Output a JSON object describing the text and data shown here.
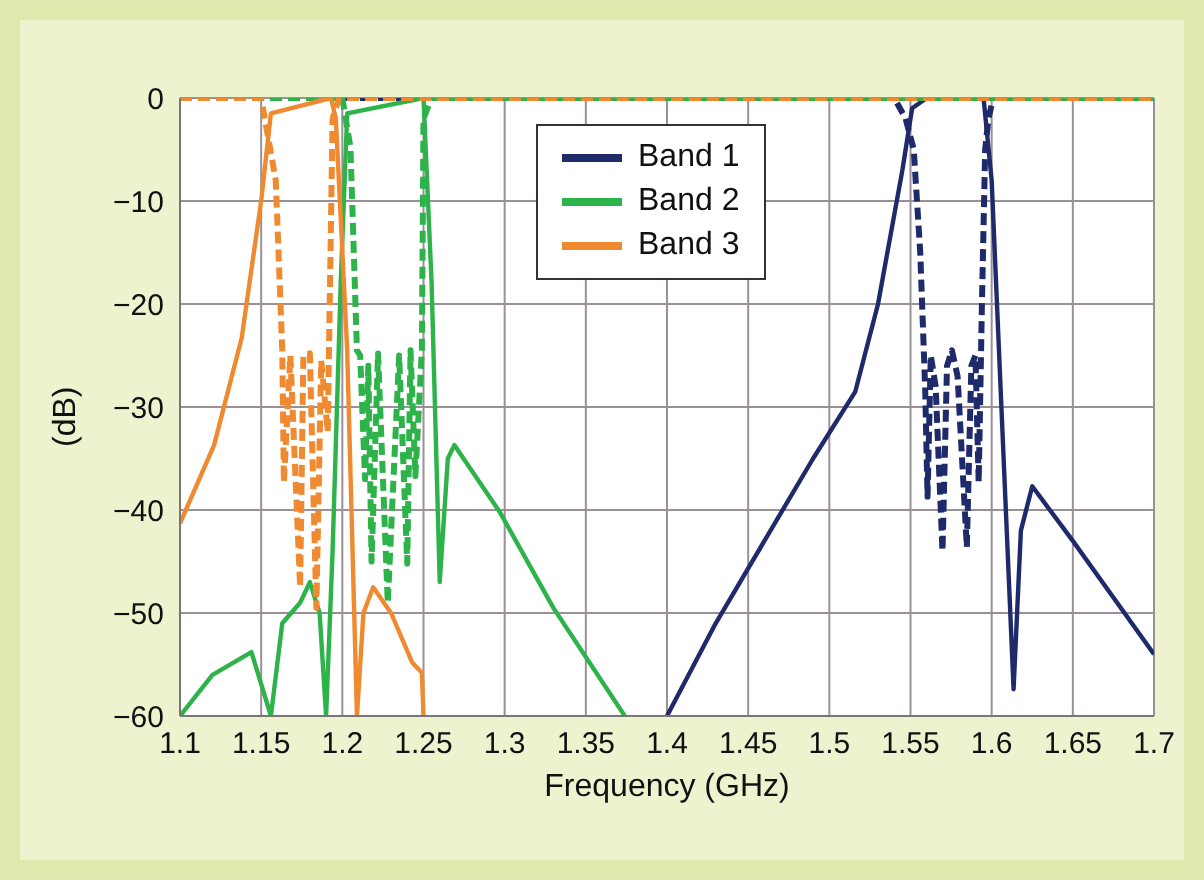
{
  "chart_data": {
    "type": "line",
    "xlabel": "Frequency (GHz)",
    "ylabel": "(dB)",
    "xlim": [
      1.1,
      1.7
    ],
    "xticks": [
      1.1,
      1.15,
      1.2,
      1.25,
      1.3,
      1.35,
      1.4,
      1.45,
      1.5,
      1.55,
      1.6,
      1.65,
      1.7
    ],
    "ylim": [
      -60,
      0
    ],
    "yticks": [
      -60,
      -50,
      -40,
      -30,
      -20,
      -10,
      0
    ],
    "grid": true,
    "legend": "top",
    "marker": "none",
    "series": [
      {
        "name": "Band 1",
        "color": "#1f2a6b",
        "line_style": "solid",
        "x": [
          1.4,
          1.43,
          1.46,
          1.49,
          1.516,
          1.53,
          1.545,
          1.551,
          1.56,
          1.595,
          1.6,
          1.606,
          1.6135,
          1.618,
          1.625,
          1.65,
          1.7
        ],
        "values": [
          -60,
          -51,
          -43,
          -35,
          -28.5,
          -20,
          -7,
          -1,
          0,
          0,
          -8,
          -30,
          -57.4,
          -42,
          -37.7,
          -43,
          -54
        ]
      },
      {
        "color": "#1f2a6b",
        "line_style": "dashed",
        "x": [
          1.1,
          1.54,
          1.547,
          1.552,
          1.556,
          1.559,
          1.5605,
          1.5625,
          1.5655,
          1.5697,
          1.5725,
          1.5755,
          1.579,
          1.5847,
          1.5875,
          1.59,
          1.592,
          1.594,
          1.596,
          1.598,
          1.601,
          1.7
        ],
        "values": [
          0,
          0,
          -2,
          -5,
          -15,
          -28,
          -38.7,
          -25,
          -28,
          -44,
          -26,
          -24.5,
          -27,
          -43.6,
          -26,
          -25,
          -37.3,
          -20,
          -5,
          -2,
          0,
          0
        ]
      },
      {
        "name": "Band 2",
        "color": "#2db34a",
        "line_style": "solid",
        "x": [
          1.1,
          1.12,
          1.144,
          1.156,
          1.163,
          1.174,
          1.18,
          1.186,
          1.19,
          1.194,
          1.199,
          1.203,
          1.25,
          1.255,
          1.26,
          1.265,
          1.269,
          1.297,
          1.33,
          1.374
        ],
        "values": [
          -60,
          -56,
          -53.8,
          -60,
          -51,
          -49,
          -47,
          -50,
          -60,
          -44,
          -18,
          -1.5,
          0,
          -18,
          -47,
          -35,
          -33.7,
          -40.2,
          -49.5,
          -60
        ]
      },
      {
        "color": "#2db34a",
        "line_style": "dashed",
        "x": [
          1.1,
          1.2,
          1.205,
          1.209,
          1.211,
          1.214,
          1.216,
          1.218,
          1.222,
          1.228,
          1.235,
          1.24,
          1.242,
          1.245,
          1.249,
          1.25,
          1.255,
          1.7
        ],
        "values": [
          0,
          0,
          -4.8,
          -24.5,
          -25,
          -37,
          -26,
          -45,
          -24.8,
          -49,
          -25,
          -45.2,
          -24.5,
          -36.7,
          -24.5,
          -2,
          0,
          0
        ]
      },
      {
        "name": "Band 3",
        "color": "#f08a30",
        "line_style": "solid",
        "x": [
          1.1,
          1.121,
          1.138,
          1.15,
          1.156,
          1.193,
          1.196,
          1.203,
          1.209,
          1.213,
          1.219,
          1.23,
          1.243,
          1.249,
          1.25
        ],
        "values": [
          -41.3,
          -33.7,
          -23.3,
          -10,
          -1.5,
          0,
          -2,
          -24.5,
          -60,
          -50,
          -47.5,
          -50,
          -54.8,
          -55.8,
          -60
        ]
      },
      {
        "color": "#f08a30",
        "line_style": "dashed",
        "x": [
          1.1,
          1.15,
          1.159,
          1.163,
          1.164,
          1.168,
          1.174,
          1.176,
          1.18,
          1.184,
          1.187,
          1.191,
          1.194,
          1.198,
          1.7
        ],
        "values": [
          0,
          0,
          -8,
          -24.5,
          -37.3,
          -25,
          -47.5,
          -25,
          -24.8,
          -49.5,
          -25.5,
          -32.4,
          -2,
          0,
          0
        ]
      }
    ]
  }
}
